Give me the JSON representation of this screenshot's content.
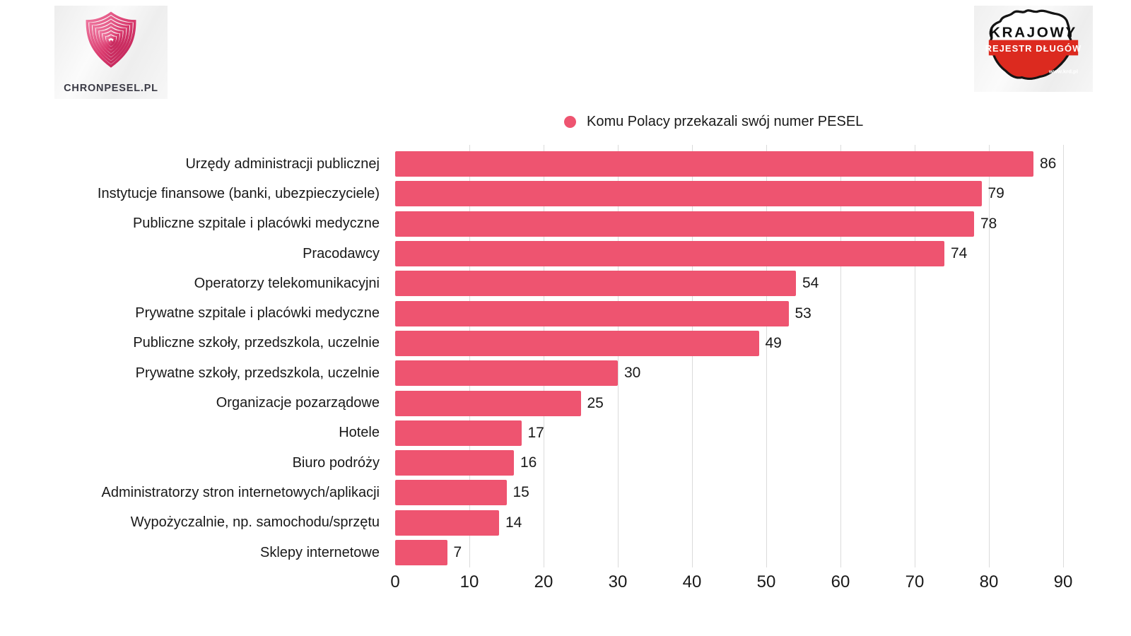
{
  "branding": {
    "left_logo": {
      "name": "CHRONPESEL.PL",
      "icon": "fingerprint-shield-icon"
    },
    "right_logo": {
      "line1": "KRAJOWY",
      "line2": "REJESTR DŁUGÓW",
      "url": "www.krd.pl",
      "icon": "poland-map-icon",
      "red": "#dc2a1f"
    }
  },
  "legend": {
    "label": "Komu Polacy przekazali swój numer PESEL",
    "marker_color": "#ee5470"
  },
  "chart_data": {
    "type": "bar",
    "orientation": "horizontal",
    "series_name": "Komu Polacy przekazali swój numer PESEL",
    "categories": [
      "Urzędy administracji publicznej",
      "Instytucje finansowe (banki, ubezpieczyciele)",
      "Publiczne szpitale i placówki medyczne",
      "Pracodawcy",
      "Operatorzy telekomunikacyjni",
      "Prywatne szpitale i placówki medyczne",
      "Publiczne szkoły, przedszkola, uczelnie",
      "Prywatne szkoły, przedszkola, uczelnie",
      "Organizacje pozarządowe",
      "Hotele",
      "Biuro podróży",
      "Administratorzy stron internetowych/aplikacji",
      "Wypożyczalnie, np. samochodu/sprzętu",
      "Sklepy internetowe"
    ],
    "values": [
      86,
      79,
      78,
      74,
      54,
      53,
      49,
      30,
      25,
      17,
      16,
      15,
      14,
      7
    ],
    "xlim": [
      0,
      90
    ],
    "xticks": [
      0,
      10,
      20,
      30,
      40,
      50,
      60,
      70,
      80,
      90
    ],
    "grid": true,
    "legend_position": "top",
    "bar_color": "#ee5470",
    "grid_color": "#dbdbdb",
    "text_color": "#191919"
  }
}
